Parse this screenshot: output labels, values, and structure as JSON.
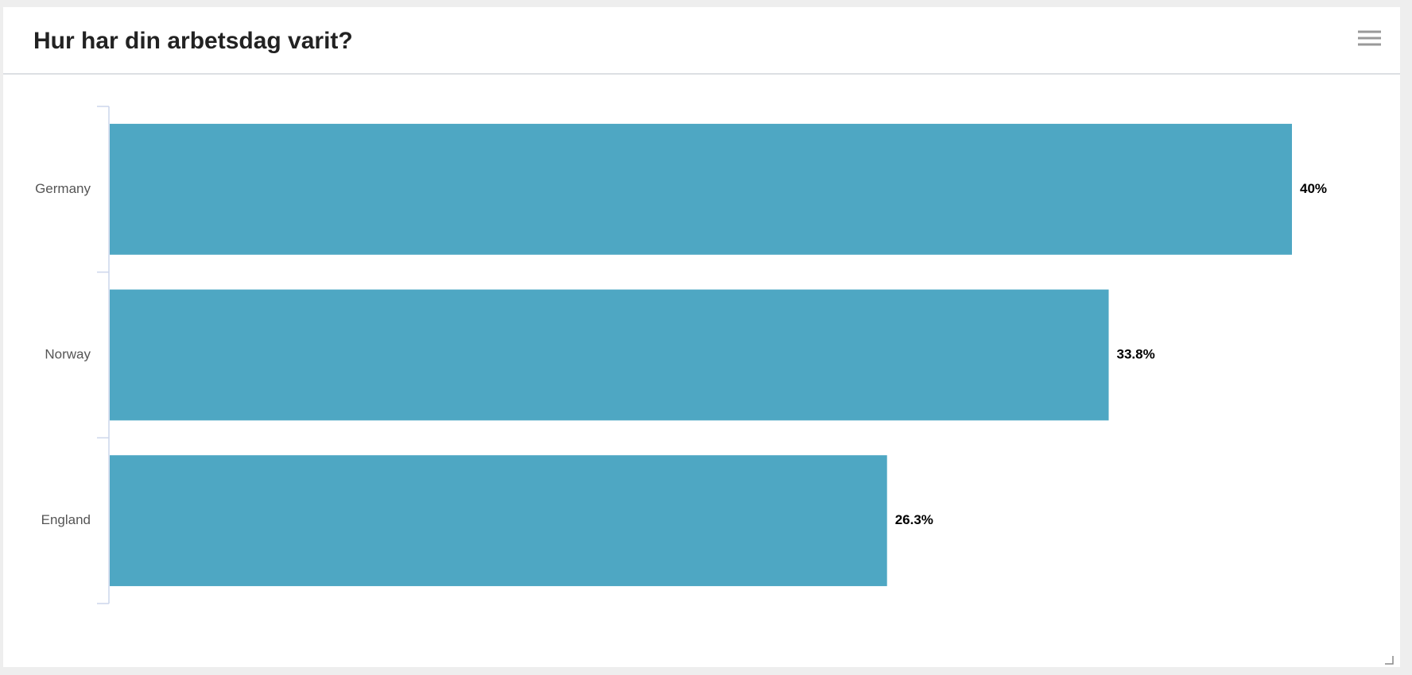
{
  "chart_data": {
    "type": "bar",
    "orientation": "horizontal",
    "title": "Hur har din arbetsdag varit?",
    "categories": [
      "Germany",
      "Norway",
      "England"
    ],
    "values": [
      40,
      33.8,
      26.3
    ],
    "value_labels": [
      "40%",
      "33.8%",
      "26.3%"
    ],
    "color": "#4ea7c3"
  }
}
